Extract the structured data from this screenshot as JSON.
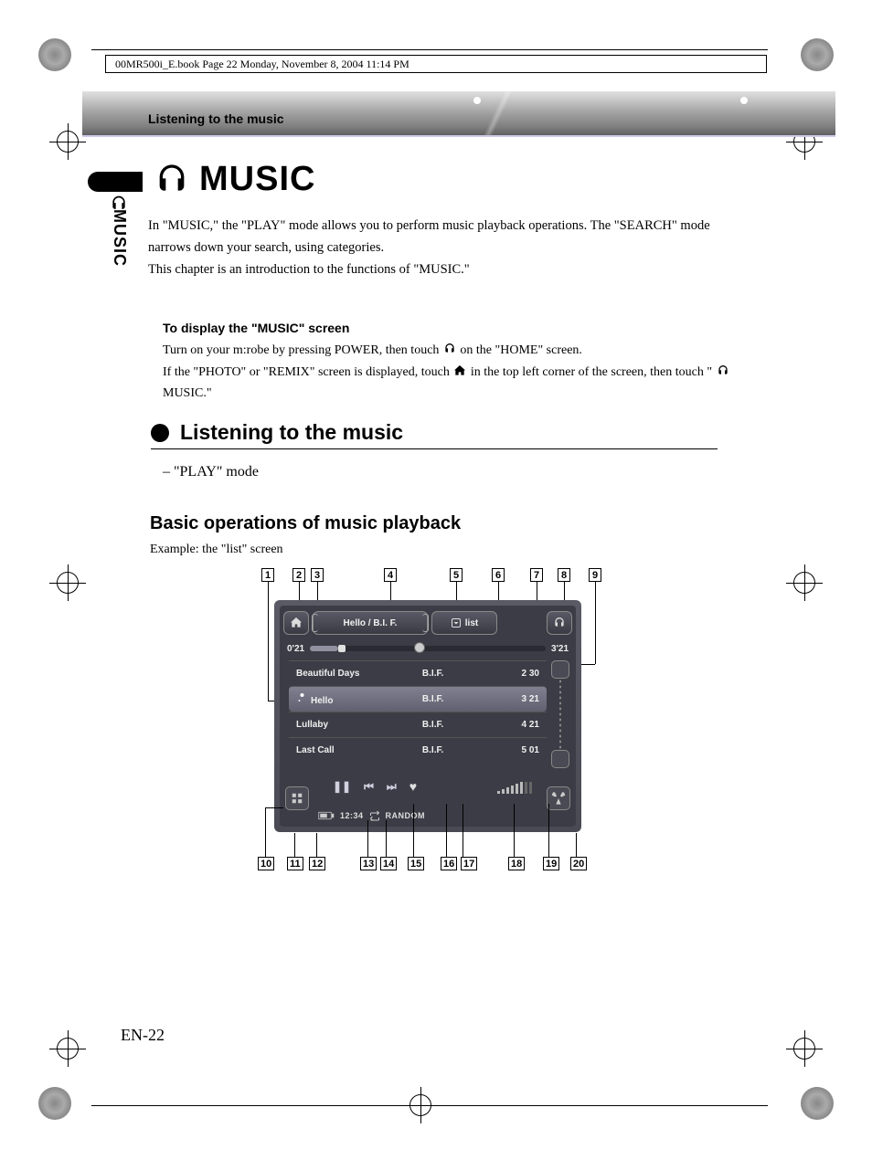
{
  "cropHeader": "00MR500i_E.book  Page 22  Monday, November 8, 2004  11:14 PM",
  "breadcrumb": "Listening to the music",
  "sideTab": "MUSIC",
  "pageTitle": "MUSIC",
  "intro": {
    "p1": "In \"MUSIC,\" the \"PLAY\" mode allows you to perform music playback operations. The \"SEARCH\" mode narrows down your search, using categories.",
    "p2": "This chapter is an introduction to the functions of \"MUSIC.\""
  },
  "displaySect": {
    "heading": "To display the \"MUSIC\" screen",
    "line1a": "Turn on your m:robe by pressing POWER, then touch ",
    "line1b": " on the \"HOME\" screen.",
    "line2a": "If the \"PHOTO\" or \"REMIX\" screen is displayed, touch ",
    "line2b": " in the top left corner of the screen, then touch \"",
    "line2c": " MUSIC.\""
  },
  "h2": "Listening to the music",
  "playMode": "– \"PLAY\" mode",
  "h3": "Basic operations of music playback",
  "example": "Example: the \"list\" screen",
  "screen": {
    "title": "Hello / B.I. F.",
    "listLabel": "list",
    "elapsed": "0'21",
    "total": "3'21",
    "tracks": [
      {
        "name": "Beautiful Days",
        "artist": "B.I.F.",
        "dur": "2 30",
        "sel": false
      },
      {
        "name": "Hello",
        "artist": "B.I.F.",
        "dur": "3 21",
        "sel": true
      },
      {
        "name": "Lullaby",
        "artist": "B.I.F.",
        "dur": "4 21",
        "sel": false
      },
      {
        "name": "Last Call",
        "artist": "B.I.F.",
        "dur": "5 01",
        "sel": false
      }
    ],
    "status": {
      "time": "12:34",
      "mode": "RANDOM"
    }
  },
  "callouts": {
    "top": [
      "1",
      "2",
      "3",
      "4",
      "5",
      "6",
      "7",
      "8",
      "9"
    ],
    "bottom": [
      "10",
      "11",
      "12",
      "13",
      "14",
      "15",
      "16",
      "17",
      "18",
      "19",
      "20"
    ]
  },
  "pageNum": "EN-22"
}
